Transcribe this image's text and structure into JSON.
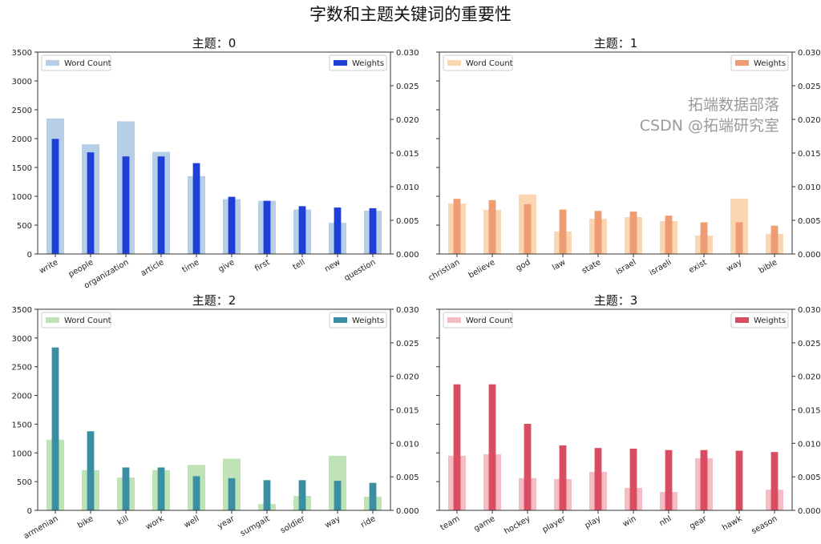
{
  "title": "字数和主题关键词的重要性",
  "watermark": {
    "line1": "拓端数据部落",
    "line2": "CSDN @拓端研究室"
  },
  "chart_data": [
    {
      "type": "bar",
      "title": "主题：0",
      "legend_left": "Word Count",
      "legend_right": "Weights",
      "legend_placement": "upper-left / upper-right",
      "categories": [
        "write",
        "people",
        "organization",
        "article",
        "time",
        "give",
        "first",
        "tell",
        "new",
        "question"
      ],
      "word_count": [
        2350,
        1900,
        2300,
        1770,
        1350,
        950,
        920,
        770,
        540,
        750
      ],
      "weights": [
        0.0171,
        0.0151,
        0.0145,
        0.0145,
        0.0135,
        0.0085,
        0.0079,
        0.0071,
        0.0069,
        0.0068
      ],
      "ylim_left": [
        0,
        3500
      ],
      "ylim_right": [
        0,
        0.03
      ],
      "color_light": "#b6cfe6",
      "color_dark": "#1e40d6"
    },
    {
      "type": "bar",
      "title": "主题：1",
      "legend_left": "Word Count",
      "legend_right": "Weights",
      "categories": [
        "christian",
        "believe",
        "god",
        "law",
        "state",
        "israel",
        "israeli",
        "exist",
        "way",
        "bible"
      ],
      "word_count": [
        875,
        765,
        1030,
        390,
        610,
        640,
        570,
        320,
        960,
        350
      ],
      "weights": [
        0.0082,
        0.008,
        0.0074,
        0.0066,
        0.0064,
        0.0063,
        0.0057,
        0.0047,
        0.0047,
        0.0042
      ],
      "ylim_left": [
        0,
        3500
      ],
      "ylim_right": [
        0,
        0.03
      ],
      "color_light": "#fbd6b3",
      "color_dark": "#ef9c72"
    },
    {
      "type": "bar",
      "title": "主题：2",
      "legend_left": "Word Count",
      "legend_right": "Weights",
      "categories": [
        "armenian",
        "bike",
        "kill",
        "work",
        "well",
        "year",
        "sumgait",
        "soldier",
        "way",
        "ride"
      ],
      "word_count": [
        1230,
        700,
        570,
        700,
        790,
        900,
        110,
        250,
        950,
        240
      ],
      "weights": [
        0.0243,
        0.0118,
        0.0064,
        0.0064,
        0.0051,
        0.0048,
        0.0045,
        0.0045,
        0.0044,
        0.0041
      ],
      "ylim_left": [
        0,
        3500
      ],
      "ylim_right": [
        0,
        0.03
      ],
      "color_light": "#bfe3b7",
      "color_dark": "#3b8fa3"
    },
    {
      "type": "bar",
      "title": "主题：3",
      "legend_left": "Word Count",
      "legend_right": "Weights",
      "categories": [
        "team",
        "game",
        "hockey",
        "player",
        "play",
        "win",
        "nhl",
        "gear",
        "hawk",
        "season"
      ],
      "word_count": [
        950,
        975,
        560,
        545,
        670,
        390,
        320,
        905,
        0,
        360
      ],
      "weights": [
        0.0188,
        0.0188,
        0.0129,
        0.0097,
        0.0093,
        0.0092,
        0.009,
        0.009,
        0.0089,
        0.0087
      ],
      "ylim_left": [
        0,
        3500
      ],
      "ylim_right": [
        0,
        0.03
      ],
      "color_light": "#f4bcc3",
      "color_dark": "#d94c62"
    }
  ],
  "left_ticks": [
    "0",
    "500",
    "1000",
    "1500",
    "2000",
    "2500",
    "3000",
    "3500"
  ],
  "right_ticks": [
    "0.000",
    "0.005",
    "0.010",
    "0.015",
    "0.020",
    "0.025",
    "0.030"
  ]
}
